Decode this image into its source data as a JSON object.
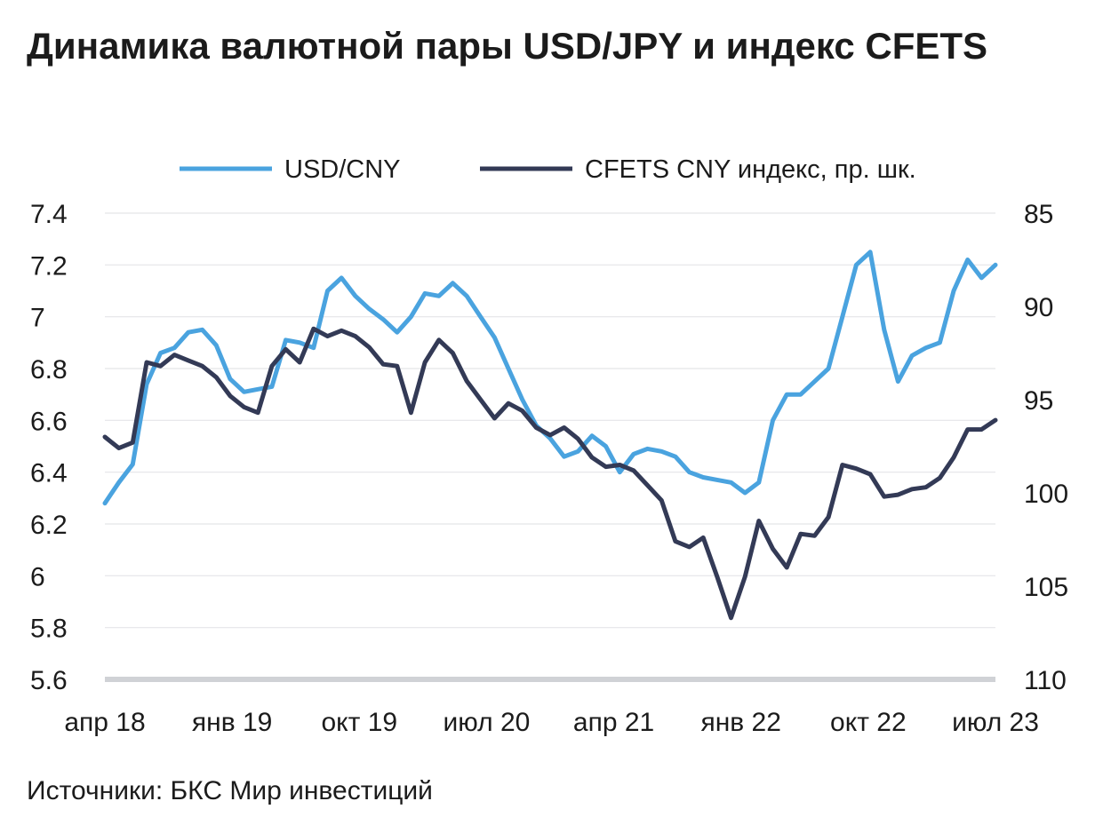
{
  "title": "Динамика валютной пары USD/JPY и индекс CFETS",
  "source": "Источники: БКС Мир инвестиций",
  "chart_data": {
    "type": "line",
    "x_tick_labels": [
      "апр 18",
      "янв 19",
      "окт 19",
      "июл 20",
      "апр 21",
      "янв 22",
      "окт 22",
      "июл 23"
    ],
    "x_range": [
      "2018-04",
      "2023-08"
    ],
    "left_axis": {
      "ticks": [
        "7.4",
        "7.2",
        "7",
        "6.8",
        "6.6",
        "6.4",
        "6.2",
        "6",
        "5.8",
        "5.6"
      ],
      "range": [
        5.6,
        7.4
      ]
    },
    "right_axis": {
      "ticks": [
        "85",
        "90",
        "95",
        "100",
        "105",
        "110"
      ],
      "range": [
        85,
        110
      ],
      "inverted": true
    },
    "legend_position": "top",
    "grid": "horizontal",
    "series": [
      {
        "name": "USD/CNY",
        "axis": "left",
        "color": "#4aa3df",
        "x": [
          "2018-04",
          "2018-05",
          "2018-06",
          "2018-07",
          "2018-08",
          "2018-09",
          "2018-10",
          "2018-11",
          "2018-12",
          "2019-01",
          "2019-02",
          "2019-03",
          "2019-04",
          "2019-05",
          "2019-06",
          "2019-07",
          "2019-08",
          "2019-09",
          "2019-10",
          "2019-11",
          "2019-12",
          "2020-01",
          "2020-02",
          "2020-03",
          "2020-04",
          "2020-05",
          "2020-06",
          "2020-07",
          "2020-08",
          "2020-09",
          "2020-10",
          "2020-11",
          "2020-12",
          "2021-01",
          "2021-02",
          "2021-03",
          "2021-04",
          "2021-05",
          "2021-06",
          "2021-07",
          "2021-08",
          "2021-09",
          "2021-10",
          "2021-11",
          "2021-12",
          "2022-01",
          "2022-02",
          "2022-03",
          "2022-04",
          "2022-05",
          "2022-06",
          "2022-07",
          "2022-08",
          "2022-09",
          "2022-10",
          "2022-11",
          "2022-12",
          "2023-01",
          "2023-02",
          "2023-03",
          "2023-04",
          "2023-05",
          "2023-06",
          "2023-07",
          "2023-08"
        ],
        "values": [
          6.28,
          6.36,
          6.43,
          6.74,
          6.86,
          6.88,
          6.94,
          6.95,
          6.89,
          6.76,
          6.71,
          6.72,
          6.73,
          6.91,
          6.9,
          6.88,
          7.1,
          7.15,
          7.08,
          7.03,
          6.99,
          6.94,
          7.0,
          7.09,
          7.08,
          7.13,
          7.08,
          7.0,
          6.92,
          6.8,
          6.68,
          6.58,
          6.53,
          6.46,
          6.48,
          6.54,
          6.5,
          6.4,
          6.47,
          6.49,
          6.48,
          6.46,
          6.4,
          6.38,
          6.37,
          6.36,
          6.32,
          6.36,
          6.6,
          6.7,
          6.7,
          6.75,
          6.8,
          7.0,
          7.2,
          7.25,
          6.95,
          6.75,
          6.85,
          6.88,
          6.9,
          7.1,
          7.22,
          7.15,
          7.2
        ]
      },
      {
        "name": "CFETS CNY индекс, пр. шк.",
        "axis": "right",
        "color": "#333a56",
        "x": [
          "2018-04",
          "2018-05",
          "2018-06",
          "2018-07",
          "2018-08",
          "2018-09",
          "2018-10",
          "2018-11",
          "2018-12",
          "2019-01",
          "2019-02",
          "2019-03",
          "2019-04",
          "2019-05",
          "2019-06",
          "2019-07",
          "2019-08",
          "2019-09",
          "2019-10",
          "2019-11",
          "2019-12",
          "2020-01",
          "2020-02",
          "2020-03",
          "2020-04",
          "2020-05",
          "2020-06",
          "2020-07",
          "2020-08",
          "2020-09",
          "2020-10",
          "2020-11",
          "2020-12",
          "2021-01",
          "2021-02",
          "2021-03",
          "2021-04",
          "2021-05",
          "2021-06",
          "2021-07",
          "2021-08",
          "2021-09",
          "2021-10",
          "2021-11",
          "2021-12",
          "2022-01",
          "2022-02",
          "2022-03",
          "2022-04",
          "2022-05",
          "2022-06",
          "2022-07",
          "2022-08",
          "2022-09",
          "2022-10",
          "2022-11",
          "2022-12",
          "2023-01",
          "2023-02",
          "2023-03",
          "2023-04",
          "2023-05",
          "2023-06",
          "2023-07",
          "2023-08"
        ],
        "values": [
          97.0,
          97.6,
          97.3,
          93.0,
          93.2,
          92.6,
          92.9,
          93.2,
          93.8,
          94.8,
          95.4,
          95.7,
          93.2,
          92.3,
          93.0,
          91.2,
          91.6,
          91.3,
          91.6,
          92.2,
          93.1,
          93.2,
          95.7,
          93.0,
          91.8,
          92.5,
          94.0,
          95.0,
          96.0,
          95.2,
          95.6,
          96.5,
          96.9,
          96.5,
          97.1,
          98.1,
          98.6,
          98.5,
          98.8,
          99.6,
          100.4,
          102.6,
          102.9,
          102.4,
          104.5,
          106.7,
          104.5,
          101.5,
          103.0,
          104.0,
          102.2,
          102.3,
          101.3,
          98.5,
          98.7,
          99.0,
          100.2,
          100.1,
          99.8,
          99.7,
          99.2,
          98.1,
          96.6,
          96.6,
          96.1
        ]
      }
    ]
  }
}
